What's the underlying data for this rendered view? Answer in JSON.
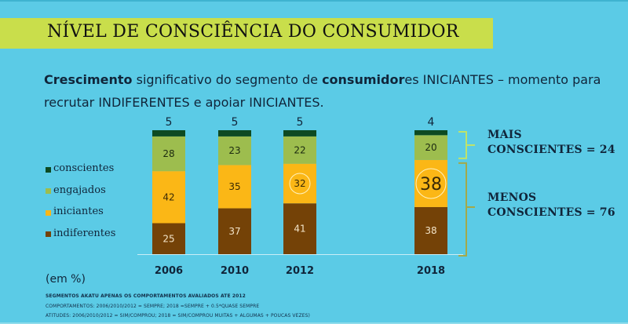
{
  "header": {
    "title": "NÍVEL DE CONSCIÊNCIA DO CONSUMIDOR"
  },
  "subtitle": {
    "part1_bold": "Crescimento",
    "part2": " significativo do segmento de ",
    "part3_bold": "consumidor",
    "part4": "es INICIANTES – momento para recrutar INDIFERENTES e apoiar INICIANTES."
  },
  "colors": {
    "background": "#5bcbe6",
    "title_band": "#c9de4b",
    "conscientes": "#0d4a22",
    "engajados": "#9dbd4e",
    "iniciantes": "#fbb716",
    "indiferentes": "#744207",
    "bracket_upper": "#bfe36a",
    "bracket_lower": "#a4a94a"
  },
  "chart_data": {
    "type": "bar",
    "stacked": true,
    "title": "NÍVEL DE CONSCIÊNCIA DO CONSUMIDOR",
    "xlabel": "",
    "ylabel": "",
    "unit_label": "(em %)",
    "ylim": [
      0,
      100
    ],
    "grid": false,
    "legend_position": "left",
    "categories": [
      "2006",
      "2010",
      "2012",
      "2018"
    ],
    "series": [
      {
        "name": "indiferentes",
        "values": [
          25,
          37,
          41,
          38
        ]
      },
      {
        "name": "iniciantes",
        "values": [
          42,
          35,
          32,
          38
        ]
      },
      {
        "name": "engajados",
        "values": [
          28,
          23,
          22,
          20
        ]
      },
      {
        "name": "conscientes",
        "values": [
          5,
          5,
          5,
          4
        ]
      }
    ],
    "legend": [
      "conscientes",
      "engajados",
      "iniciantes",
      "indiferentes"
    ],
    "highlighted": [
      {
        "category": "2012",
        "series": "iniciantes"
      },
      {
        "category": "2018",
        "series": "iniciantes"
      }
    ],
    "annotations": [
      {
        "label_line1": "MAIS",
        "label_line2": "CONSCIENTES = 24",
        "covers": [
          "conscientes",
          "engajados"
        ],
        "category": "2018"
      },
      {
        "label_line1": "MENOS",
        "label_line2": "CONSCIENTES = 76",
        "covers": [
          "iniciantes",
          "indiferentes"
        ],
        "category": "2018"
      }
    ]
  },
  "notes": {
    "unit": "(em %)",
    "line1": "SEGMENTOS AKATU APENAS OS COMPORTAMENTOS AVALIADOS ATE 2012",
    "line2": "COMPORTAMENTOS: 2006/2010/2012 = SEMPRE; 2018 =SEMPRE + 0.5*QUASE SEMPRE",
    "line3": "ATITUDES: 2006/2010/2012 = SIM/COMPROU; 2018 = SIM/COMPROU MUITAS + ALGUMAS + POUCAS VEZES)"
  }
}
